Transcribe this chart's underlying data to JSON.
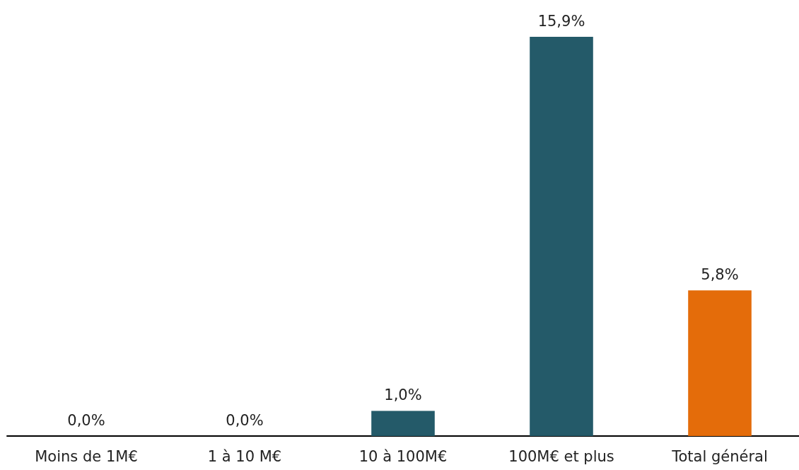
{
  "chart_data": {
    "type": "bar",
    "categories": [
      "Moins de 1M€",
      "1 à 10 M€",
      "10 à 100M€",
      "100M€ et plus",
      "Total général"
    ],
    "values": [
      0.0,
      0.0,
      1.0,
      15.9,
      5.8
    ],
    "colors": [
      "#245a69",
      "#245a69",
      "#245a69",
      "#245a69",
      "#e46c0a"
    ],
    "value_labels": [
      "0,0%",
      "0,0%",
      "1,0%",
      "15,9%",
      "5,8%"
    ]
  }
}
